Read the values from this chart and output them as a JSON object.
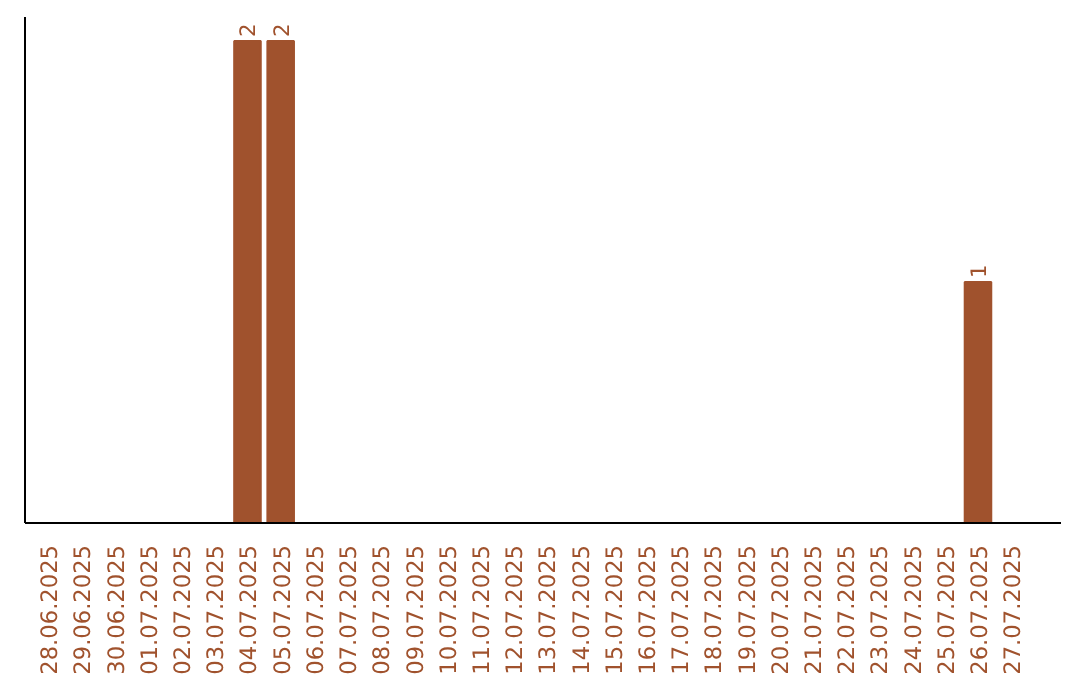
{
  "chart_data": {
    "type": "bar",
    "categories": [
      "28.06.2025",
      "29.06.2025",
      "30.06.2025",
      "01.07.2025",
      "02.07.2025",
      "03.07.2025",
      "04.07.2025",
      "05.07.2025",
      "06.07.2025",
      "07.07.2025",
      "08.07.2025",
      "09.07.2025",
      "10.07.2025",
      "11.07.2025",
      "12.07.2025",
      "13.07.2025",
      "14.07.2025",
      "15.07.2025",
      "16.07.2025",
      "17.07.2025",
      "18.07.2025",
      "19.07.2025",
      "20.07.2025",
      "21.07.2025",
      "22.07.2025",
      "23.07.2025",
      "24.07.2025",
      "25.07.2025",
      "26.07.2025",
      "27.07.2025"
    ],
    "values": [
      0,
      0,
      0,
      0,
      0,
      0,
      2,
      2,
      0,
      0,
      0,
      0,
      0,
      0,
      0,
      0,
      0,
      0,
      0,
      0,
      0,
      0,
      0,
      0,
      0,
      0,
      0,
      0,
      1,
      0
    ],
    "value_labels": [
      null,
      null,
      null,
      null,
      null,
      null,
      "2",
      "2",
      null,
      null,
      null,
      null,
      null,
      null,
      null,
      null,
      null,
      null,
      null,
      null,
      null,
      null,
      null,
      null,
      null,
      null,
      null,
      null,
      "1",
      null
    ],
    "color": "#a0522d",
    "ylim": [
      0,
      2.1
    ],
    "tick_labels": "x",
    "grid": false
  }
}
